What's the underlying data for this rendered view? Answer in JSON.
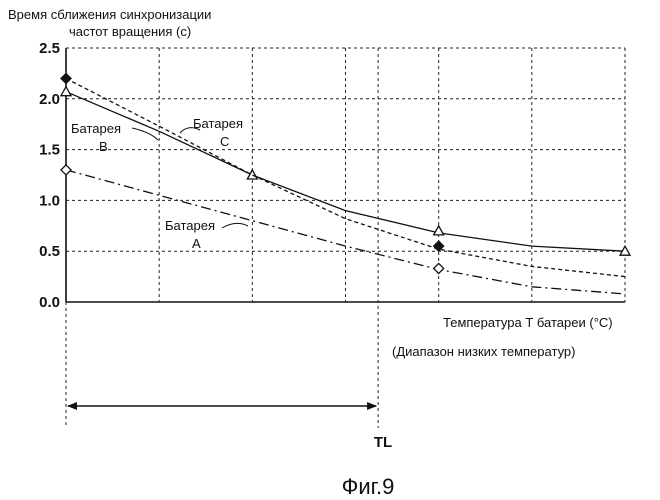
{
  "chart_data": {
    "type": "line",
    "ylabel_line1": "Время сближения синхронизации",
    "ylabel_line2": "частот вращения (с)",
    "xlabel": "Температура Т батареи (°C)",
    "range_note": "(Диапазон низких температур)",
    "threshold_label": "TL",
    "figure_caption": "Фиг.9",
    "ylim": [
      0,
      2.5
    ],
    "yticks": [
      "0.0",
      "0.5",
      "1.0",
      "1.5",
      "2.0",
      "2.5"
    ],
    "xlim": [
      0,
      6
    ],
    "threshold_x": 3.35,
    "grid": true,
    "series": [
      {
        "name": "Батарея A",
        "label_line1": "Батарея",
        "label_line2": "A",
        "style": "dash-dot",
        "marker": "open-diamond",
        "x": [
          0,
          1,
          2,
          3,
          4,
          5,
          6
        ],
        "y": [
          1.3,
          1.05,
          0.8,
          0.55,
          0.32,
          0.15,
          0.08
        ],
        "marker_x": [
          0,
          4
        ],
        "marker_y": [
          1.3,
          0.33
        ]
      },
      {
        "name": "Батарея B",
        "label_line1": "Батарея",
        "label_line2": "B",
        "style": "solid",
        "marker": "open-triangle",
        "x": [
          0,
          1,
          2,
          3,
          4,
          5,
          6
        ],
        "y": [
          2.07,
          1.68,
          1.25,
          0.9,
          0.68,
          0.55,
          0.5
        ],
        "marker_x": [
          0,
          2,
          4,
          6
        ],
        "marker_y": [
          2.07,
          1.25,
          0.7,
          0.5
        ]
      },
      {
        "name": "Батарея C",
        "label_line1": "Батарея",
        "label_line2": "C",
        "style": "dashed",
        "marker": "filled-diamond",
        "x": [
          0,
          1,
          2,
          3,
          4,
          5,
          6
        ],
        "y": [
          2.2,
          1.73,
          1.25,
          0.82,
          0.52,
          0.35,
          0.25
        ],
        "marker_x": [
          0,
          4
        ],
        "marker_y": [
          2.2,
          0.55
        ]
      }
    ]
  }
}
